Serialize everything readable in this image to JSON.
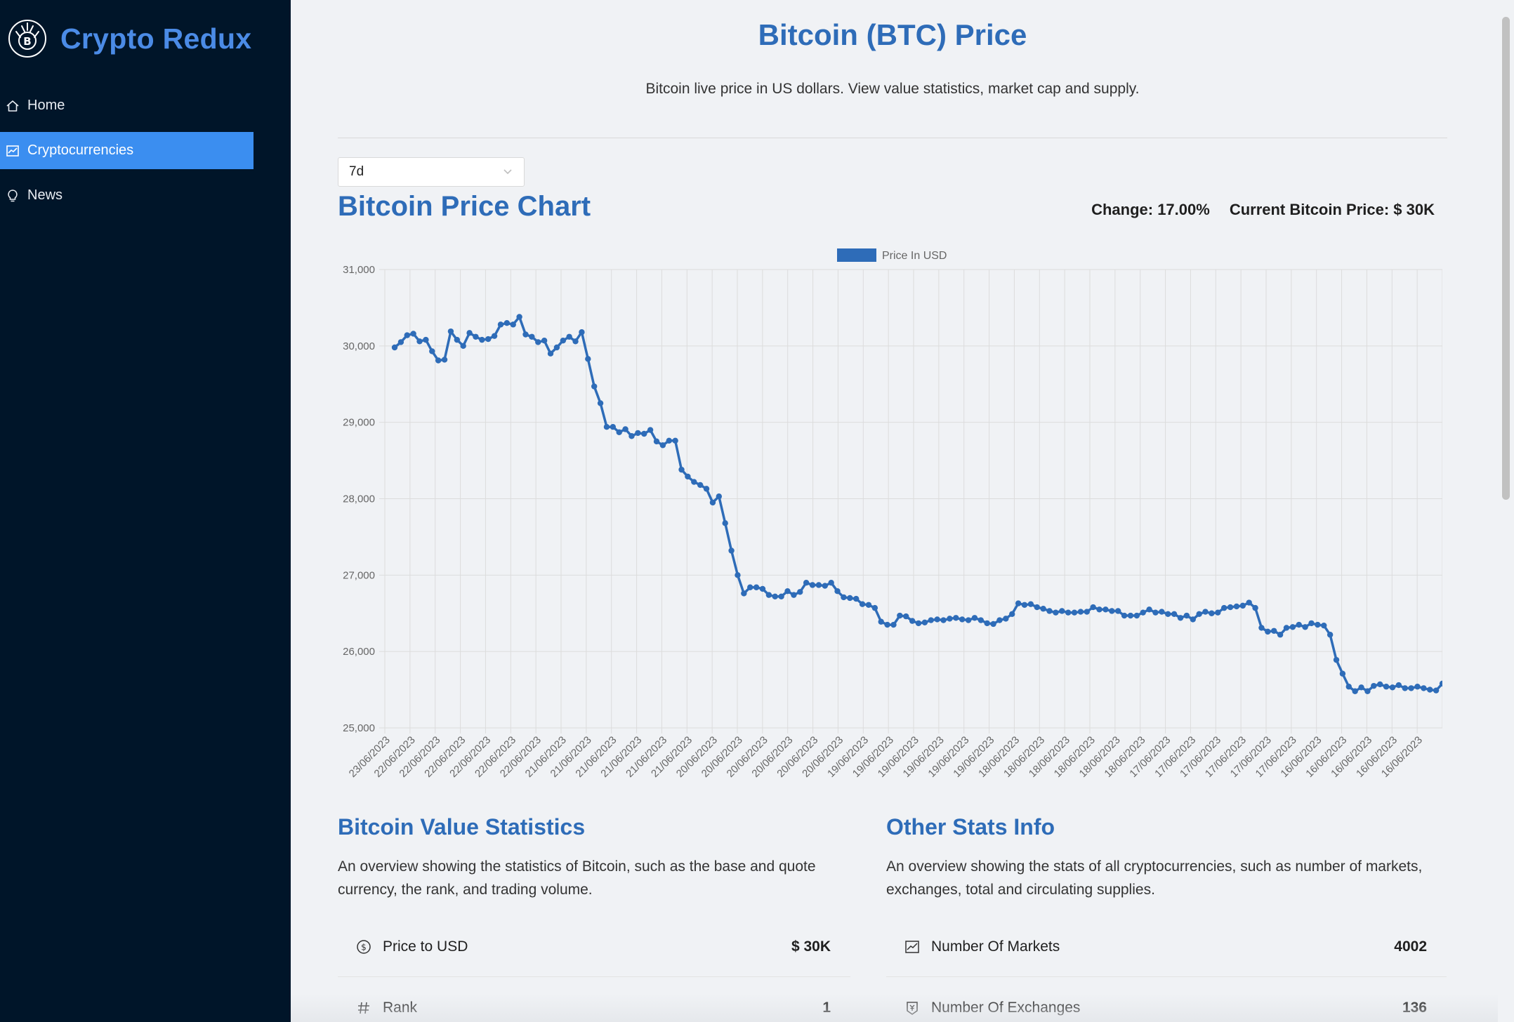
{
  "sidebar": {
    "brand": "Crypto Redux",
    "logo_icon": "bitcoin-logo-icon",
    "items": [
      {
        "label": "Home",
        "icon": "home-icon"
      },
      {
        "label": "Cryptocurrencies",
        "icon": "fund-icon",
        "active": true
      },
      {
        "label": "News",
        "icon": "bulb-icon"
      }
    ]
  },
  "header": {
    "title": "Bitcoin (BTC) Price",
    "subtitle": "Bitcoin live price in US dollars. View value statistics, market cap and supply."
  },
  "time_select": {
    "value": "7d"
  },
  "chart_section": {
    "title": "Bitcoin Price Chart",
    "change": "Change: 17.00%",
    "current_price": "Current Bitcoin Price: $ 30K"
  },
  "colors": {
    "accent": "#2e6cb8",
    "sidebar_bg": "#001529",
    "active_bg": "#3b8ef0",
    "line": "#2e6cb8"
  },
  "chart_data": {
    "type": "line",
    "legend": "Price In USD",
    "legend_position": "top",
    "grid": true,
    "ylim": [
      25000,
      31000
    ],
    "yticks": [
      "25,000",
      "26,000",
      "27,000",
      "28,000",
      "29,000",
      "30,000",
      "31,000"
    ],
    "x_tick_labels": [
      "23/06/2023",
      "22/06/2023",
      "22/06/2023",
      "22/06/2023",
      "22/06/2023",
      "22/06/2023",
      "22/06/2023",
      "21/06/2023",
      "21/06/2023",
      "21/06/2023",
      "21/06/2023",
      "21/06/2023",
      "21/06/2023",
      "20/06/2023",
      "20/06/2023",
      "20/06/2023",
      "20/06/2023",
      "20/06/2023",
      "20/06/2023",
      "19/06/2023",
      "19/06/2023",
      "19/06/2023",
      "19/06/2023",
      "19/06/2023",
      "19/06/2023",
      "18/06/2023",
      "18/06/2023",
      "18/06/2023",
      "18/06/2023",
      "18/06/2023",
      "18/06/2023",
      "17/06/2023",
      "17/06/2023",
      "17/06/2023",
      "17/06/2023",
      "17/06/2023",
      "17/06/2023",
      "16/06/2023",
      "16/06/2023",
      "16/06/2023",
      "16/06/2023",
      "16/06/2023"
    ],
    "series": [
      {
        "name": "Price In USD",
        "values": [
          29980,
          30050,
          30140,
          30160,
          30060,
          30080,
          29930,
          29810,
          29820,
          30190,
          30080,
          30000,
          30170,
          30120,
          30080,
          30090,
          30130,
          30280,
          30300,
          30280,
          30380,
          30150,
          30120,
          30050,
          30070,
          29900,
          29980,
          30070,
          30120,
          30060,
          30180,
          29830,
          29470,
          29250,
          28940,
          28940,
          28870,
          28910,
          28820,
          28860,
          28850,
          28900,
          28750,
          28700,
          28760,
          28760,
          28380,
          28290,
          28220,
          28180,
          28130,
          27950,
          28030,
          27680,
          27320,
          27000,
          26760,
          26840,
          26840,
          26820,
          26740,
          26720,
          26720,
          26790,
          26740,
          26780,
          26900,
          26870,
          26870,
          26860,
          26900,
          26790,
          26710,
          26700,
          26690,
          26620,
          26610,
          26570,
          26390,
          26350,
          26350,
          26470,
          26460,
          26400,
          26370,
          26380,
          26410,
          26420,
          26410,
          26430,
          26440,
          26420,
          26410,
          26440,
          26410,
          26370,
          26360,
          26410,
          26430,
          26490,
          26630,
          26610,
          26620,
          26580,
          26560,
          26530,
          26510,
          26530,
          26510,
          26510,
          26520,
          26520,
          26580,
          26550,
          26550,
          26530,
          26530,
          26470,
          26470,
          26470,
          26510,
          26550,
          26510,
          26520,
          26490,
          26490,
          26440,
          26470,
          26420,
          26490,
          26520,
          26500,
          26510,
          26570,
          26580,
          26590,
          26600,
          26640,
          26570,
          26310,
          26260,
          26270,
          26220,
          26310,
          26320,
          26350,
          26320,
          26370,
          26350,
          26340,
          26220,
          25890,
          25710,
          25540,
          25480,
          25530,
          25480,
          25550,
          25570,
          25540,
          25530,
          25560,
          25520,
          25520,
          25540,
          25520,
          25500,
          25490,
          25580
        ]
      }
    ]
  },
  "stats_left": {
    "title": "Bitcoin Value Statistics",
    "desc_line1": "An overview showing the statistics of Bitcoin, such as the base and quote",
    "desc_line2": "currency, the rank, and trading volume.",
    "rows": [
      {
        "label": "Price to USD",
        "value": "$ 30K",
        "icon": "dollar-circle-icon"
      },
      {
        "label": "Rank",
        "value": "1",
        "icon": "number-icon"
      }
    ]
  },
  "stats_right": {
    "title": "Other Stats Info",
    "desc_line1": "An overview showing the stats of all cryptocurrencies, such as number of markets,",
    "desc_line2": "exchanges, total and circulating supplies.",
    "rows": [
      {
        "label": "Number Of Markets",
        "value": "4002",
        "icon": "fund-icon"
      },
      {
        "label": "Number Of Exchanges",
        "value": "136",
        "icon": "money-collect-icon"
      }
    ]
  }
}
